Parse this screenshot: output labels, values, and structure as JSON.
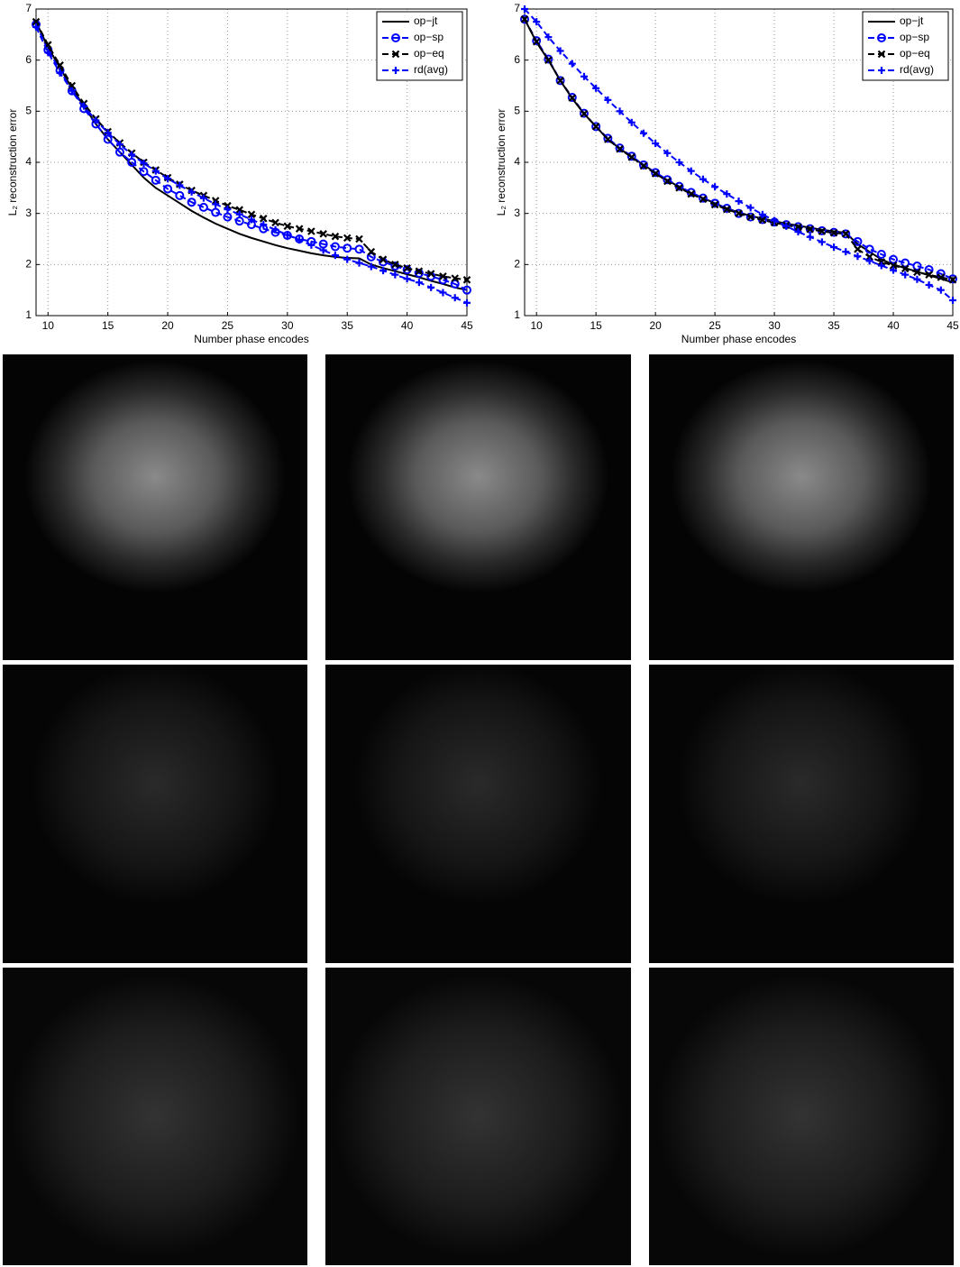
{
  "chart_data": [
    {
      "type": "line",
      "xlabel": "Number phase encodes",
      "ylabel": "L₂ reconstruction error",
      "x": [
        9,
        10,
        11,
        12,
        13,
        14,
        15,
        16,
        17,
        18,
        19,
        20,
        21,
        22,
        23,
        24,
        25,
        26,
        27,
        28,
        29,
        30,
        31,
        32,
        33,
        34,
        35,
        36,
        37,
        38,
        39,
        40,
        41,
        42,
        43,
        44,
        45
      ],
      "xlim": [
        9,
        45
      ],
      "ylim": [
        1,
        7
      ],
      "xticks": [
        10,
        15,
        20,
        25,
        30,
        35,
        40,
        45
      ],
      "yticks": [
        1,
        2,
        3,
        4,
        5,
        6,
        7
      ],
      "grid": true,
      "legend": "upper right",
      "series": [
        {
          "name": "op−jt",
          "color": "#000000",
          "linestyle": "solid",
          "values": [
            6.75,
            6.25,
            5.85,
            5.45,
            5.1,
            4.75,
            4.45,
            4.2,
            3.95,
            3.7,
            3.5,
            3.35,
            3.2,
            3.05,
            2.92,
            2.8,
            2.7,
            2.6,
            2.52,
            2.45,
            2.38,
            2.32,
            2.27,
            2.22,
            2.18,
            2.15,
            2.13,
            2.12,
            2.0,
            1.93,
            1.87,
            1.81,
            1.75,
            1.68,
            1.62,
            1.55,
            1.5
          ]
        },
        {
          "name": "op−sp",
          "color": "#0000ff",
          "linestyle": "dashed",
          "marker": "o",
          "values": [
            6.7,
            6.2,
            5.8,
            5.4,
            5.05,
            4.75,
            4.45,
            4.2,
            4.0,
            3.82,
            3.65,
            3.48,
            3.35,
            3.22,
            3.12,
            3.02,
            2.93,
            2.85,
            2.78,
            2.7,
            2.63,
            2.57,
            2.5,
            2.45,
            2.4,
            2.35,
            2.32,
            2.3,
            2.15,
            2.05,
            1.97,
            1.9,
            1.83,
            1.77,
            1.7,
            1.62,
            1.5
          ]
        },
        {
          "name": "op−eq",
          "color": "#000000",
          "linestyle": "dashed",
          "marker": "x",
          "values": [
            6.75,
            6.3,
            5.9,
            5.5,
            5.15,
            4.85,
            4.6,
            4.38,
            4.18,
            4.0,
            3.85,
            3.7,
            3.57,
            3.45,
            3.35,
            3.25,
            3.15,
            3.07,
            2.98,
            2.9,
            2.82,
            2.75,
            2.7,
            2.65,
            2.6,
            2.55,
            2.52,
            2.5,
            2.25,
            2.1,
            2.0,
            1.93,
            1.87,
            1.82,
            1.77,
            1.73,
            1.7
          ]
        },
        {
          "name": "rd(avg)",
          "color": "#0000ff",
          "linestyle": "dashed",
          "marker": "+",
          "values": [
            6.65,
            6.15,
            5.75,
            5.4,
            5.1,
            4.82,
            4.58,
            4.35,
            4.15,
            3.98,
            3.83,
            3.68,
            3.55,
            3.42,
            3.3,
            3.18,
            3.08,
            2.98,
            2.88,
            2.78,
            2.68,
            2.58,
            2.48,
            2.38,
            2.28,
            2.18,
            2.1,
            2.03,
            1.96,
            1.88,
            1.8,
            1.72,
            1.65,
            1.55,
            1.45,
            1.35,
            1.25
          ]
        }
      ]
    },
    {
      "type": "line",
      "xlabel": "Number phase encodes",
      "ylabel": "L₂ reconstruction error",
      "x": [
        9,
        10,
        11,
        12,
        13,
        14,
        15,
        16,
        17,
        18,
        19,
        20,
        21,
        22,
        23,
        24,
        25,
        26,
        27,
        28,
        29,
        30,
        31,
        32,
        33,
        34,
        35,
        36,
        37,
        38,
        39,
        40,
        41,
        42,
        43,
        44,
        45
      ],
      "xlim": [
        9,
        45
      ],
      "ylim": [
        1,
        7
      ],
      "xticks": [
        10,
        15,
        20,
        25,
        30,
        35,
        40,
        45
      ],
      "yticks": [
        1,
        2,
        3,
        4,
        5,
        6,
        7
      ],
      "grid": true,
      "legend": "upper right",
      "series": [
        {
          "name": "op−jt",
          "color": "#000000",
          "linestyle": "solid",
          "values": [
            6.8,
            6.35,
            6.0,
            5.6,
            5.25,
            4.95,
            4.7,
            4.45,
            4.27,
            4.1,
            3.95,
            3.8,
            3.65,
            3.52,
            3.4,
            3.3,
            3.2,
            3.1,
            3.02,
            2.95,
            2.9,
            2.85,
            2.8,
            2.76,
            2.72,
            2.68,
            2.65,
            2.62,
            2.4,
            2.25,
            2.1,
            2.0,
            1.93,
            1.86,
            1.79,
            1.72,
            1.65
          ]
        },
        {
          "name": "op−sp",
          "color": "#0000ff",
          "linestyle": "dashed",
          "marker": "o",
          "values": [
            6.8,
            6.38,
            6.02,
            5.6,
            5.27,
            4.96,
            4.7,
            4.47,
            4.28,
            4.12,
            3.95,
            3.8,
            3.66,
            3.53,
            3.41,
            3.3,
            3.2,
            3.1,
            3.0,
            2.93,
            2.88,
            2.83,
            2.78,
            2.74,
            2.7,
            2.66,
            2.63,
            2.6,
            2.45,
            2.3,
            2.2,
            2.1,
            2.03,
            1.97,
            1.9,
            1.82,
            1.72
          ]
        },
        {
          "name": "op−eq",
          "color": "#000000",
          "linestyle": "dashed",
          "marker": "x",
          "values": [
            6.8,
            6.36,
            6.0,
            5.6,
            5.26,
            4.95,
            4.7,
            4.45,
            4.26,
            4.1,
            3.93,
            3.78,
            3.63,
            3.5,
            3.38,
            3.28,
            3.17,
            3.08,
            3.0,
            2.93,
            2.87,
            2.82,
            2.77,
            2.73,
            2.69,
            2.65,
            2.62,
            2.6,
            2.3,
            2.15,
            2.05,
            1.98,
            1.92,
            1.85,
            1.8,
            1.75,
            1.7
          ]
        },
        {
          "name": "rd(avg)",
          "color": "#0000ff",
          "linestyle": "dashed",
          "marker": "+",
          "values": [
            7.0,
            6.75,
            6.45,
            6.18,
            5.93,
            5.68,
            5.45,
            5.22,
            5.0,
            4.78,
            4.57,
            4.37,
            4.18,
            4.0,
            3.83,
            3.67,
            3.52,
            3.38,
            3.24,
            3.11,
            2.98,
            2.86,
            2.75,
            2.64,
            2.54,
            2.44,
            2.34,
            2.25,
            2.16,
            2.07,
            1.98,
            1.89,
            1.8,
            1.71,
            1.6,
            1.5,
            1.3
          ]
        }
      ]
    }
  ]
}
